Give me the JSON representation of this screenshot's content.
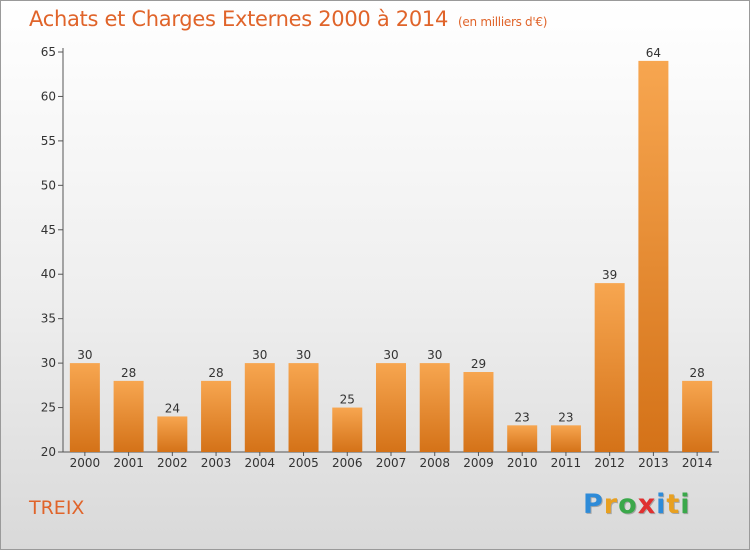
{
  "title": "Achats et Charges Externes 2000 à 2014",
  "subtitle": "(en milliers d'€)",
  "town": "TREIX",
  "logo": {
    "text": "Proxiti",
    "letters": [
      "P",
      "r",
      "o",
      "x",
      "i",
      "t",
      "i"
    ],
    "colors": [
      "#2e8bd8",
      "#e8a020",
      "#3aa84a",
      "#e03030",
      "#2e8bd8",
      "#e8a020",
      "#3aa84a"
    ]
  },
  "colors": {
    "bar_top": "#f7a650",
    "bar_bottom": "#d47218",
    "accent": "#e0642a"
  },
  "chart_data": {
    "type": "bar",
    "categories": [
      "2000",
      "2001",
      "2002",
      "2003",
      "2004",
      "2005",
      "2006",
      "2007",
      "2008",
      "2009",
      "2010",
      "2011",
      "2012",
      "2013",
      "2014"
    ],
    "values": [
      30,
      28,
      24,
      28,
      30,
      30,
      25,
      30,
      30,
      29,
      23,
      23,
      39,
      64,
      28
    ],
    "ylim": [
      20,
      65
    ],
    "yticks": [
      20,
      25,
      30,
      35,
      40,
      45,
      50,
      55,
      60,
      65
    ],
    "grid": false,
    "title": "Achats et Charges Externes 2000 à 2014",
    "xlabel": "",
    "ylabel": ""
  }
}
